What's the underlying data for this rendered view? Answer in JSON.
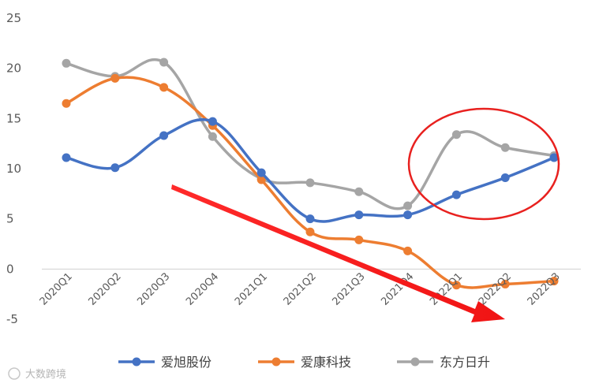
{
  "chart_data": {
    "type": "line",
    "categories": [
      "2020Q1",
      "2020Q2",
      "2020Q3",
      "2020Q4",
      "2021Q1",
      "2021Q2",
      "2021Q3",
      "2021Q4",
      "2022Q1",
      "2022Q2",
      "2022Q3"
    ],
    "ylim": [
      -5,
      25
    ],
    "yticks": [
      -5,
      0,
      5,
      10,
      15,
      20,
      25
    ],
    "grid": false,
    "legend_position": "bottom",
    "series": [
      {
        "name": "爱旭股份",
        "color": "#4472C4",
        "values": [
          11.1,
          10.1,
          13.3,
          14.7,
          9.6,
          5.0,
          5.4,
          5.4,
          7.4,
          9.1,
          11.1
        ]
      },
      {
        "name": "爱康科技",
        "color": "#ED7D31",
        "values": [
          16.5,
          19.0,
          18.1,
          14.3,
          8.9,
          3.7,
          2.9,
          1.8,
          -1.6,
          -1.5,
          -1.2
        ]
      },
      {
        "name": "东方日升",
        "color": "#A5A5A5",
        "values": [
          20.5,
          19.2,
          20.6,
          13.2,
          9.0,
          8.6,
          7.7,
          6.3,
          13.4,
          12.1,
          11.3
        ]
      }
    ],
    "annotations": [
      {
        "type": "circle",
        "color": "#E8211F",
        "covers_categories": [
          "2021Q4",
          "2022Q3"
        ]
      },
      {
        "type": "arrow",
        "color": "#FF1E1E",
        "direction": "down-right"
      }
    ]
  },
  "watermark": "大数跨境"
}
